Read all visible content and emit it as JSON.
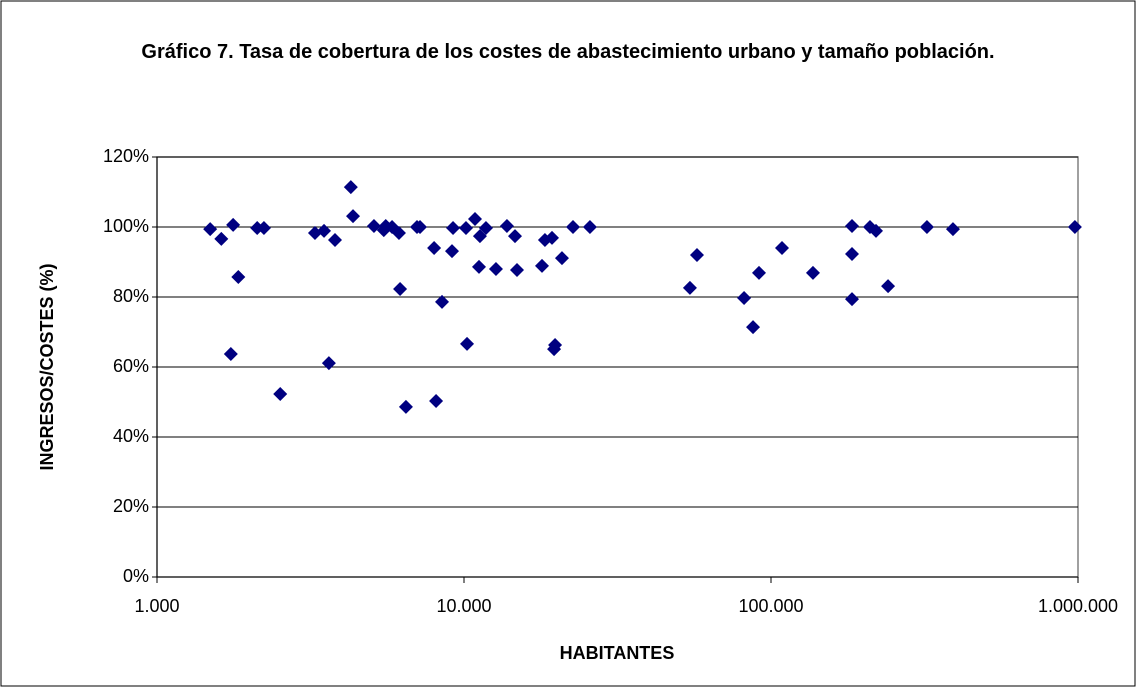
{
  "chart_data": {
    "type": "scatter",
    "title": "Gráfico 7. Tasa de cobertura de los costes de abastecimiento urbano y tamaño población.",
    "x_label": "HABITANTES",
    "y_label": "INGRESOS/COSTES (%)",
    "x_scale": "log",
    "grid": true,
    "color": "#000080",
    "xlim": [
      1000,
      1000000
    ],
    "xticks": [
      {
        "value": 1000,
        "label": "1.000"
      },
      {
        "value": 10000,
        "label": "10.000"
      },
      {
        "value": 100000,
        "label": "100.000"
      },
      {
        "value": 1000000,
        "label": "1.000.000"
      }
    ],
    "ylim": [
      0,
      120
    ],
    "yticks": [
      {
        "value": 0,
        "label": "0%"
      },
      {
        "value": 20,
        "label": "20%"
      },
      {
        "value": 40,
        "label": "40%"
      },
      {
        "value": 60,
        "label": "60%"
      },
      {
        "value": 80,
        "label": "80%"
      },
      {
        "value": 100,
        "label": "100%"
      },
      {
        "value": 120,
        "label": "120%"
      }
    ],
    "x": [
      1490,
      1620,
      1770,
      1740,
      1840,
      2120,
      2230,
      2520,
      3270,
      3500,
      3800,
      3630,
      4280,
      4350,
      5090,
      5480,
      5560,
      5830,
      6140,
      6190,
      6470,
      7030,
      7190,
      7990,
      8110,
      8480,
      9140,
      9210,
      10150,
      10230,
      10860,
      11190,
      11270,
      11790,
      12710,
      13800,
      14660,
      14880,
      17950,
      18350,
      19350,
      19650,
      19800,
      20850,
      22650,
      25720,
      54450,
      57400,
      81700,
      87400,
      91400,
      108600,
      137000,
      183600,
      183600,
      183600,
      210100,
      219800,
      240600,
      322100,
      391500,
      977000
    ],
    "values": [
      99.4,
      96.6,
      100.6,
      63.7,
      85.7,
      99.7,
      99.7,
      52.3,
      98.3,
      98.9,
      96.3,
      61.1,
      111.4,
      103.1,
      100.3,
      99.1,
      100.3,
      100,
      98.3,
      82.3,
      48.6,
      100,
      100,
      94,
      50.3,
      78.6,
      93.1,
      99.7,
      99.7,
      66.6,
      102.3,
      88.6,
      97.4,
      99.7,
      88,
      100.3,
      97.4,
      87.7,
      88.9,
      96.3,
      96.9,
      65.1,
      66.3,
      91.1,
      100,
      100,
      82.6,
      92,
      79.7,
      71.4,
      86.9,
      94,
      86.9,
      100.3,
      92.3,
      79.4,
      100,
      98.9,
      83.1,
      100,
      99.4,
      100
    ]
  }
}
